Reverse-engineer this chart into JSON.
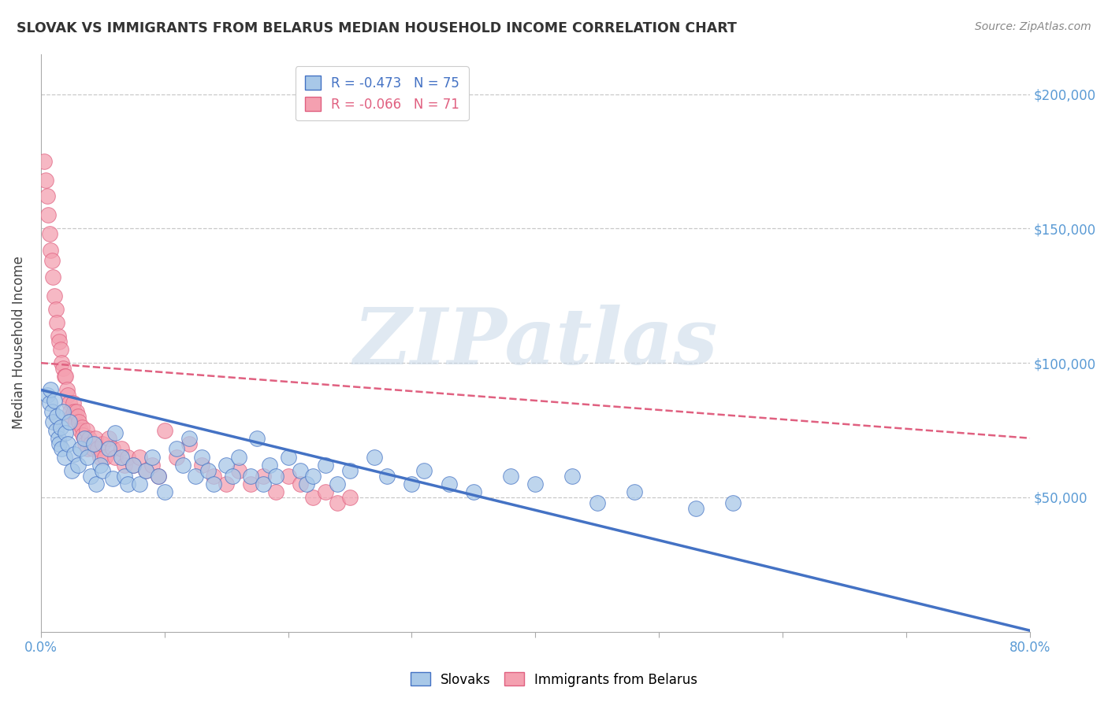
{
  "title": "SLOVAK VS IMMIGRANTS FROM BELARUS MEDIAN HOUSEHOLD INCOME CORRELATION CHART",
  "source": "Source: ZipAtlas.com",
  "ylabel": "Median Household Income",
  "xlim": [
    0.0,
    0.8
  ],
  "ylim": [
    0,
    215000
  ],
  "xticks": [
    0.0,
    0.1,
    0.2,
    0.3,
    0.4,
    0.5,
    0.6,
    0.7,
    0.8
  ],
  "xticklabels": [
    "0.0%",
    "",
    "",
    "",
    "",
    "",
    "",
    "",
    "80.0%"
  ],
  "ytick_values": [
    0,
    50000,
    100000,
    150000,
    200000
  ],
  "ytick_labels": [
    "",
    "$50,000",
    "$100,000",
    "$150,000",
    "$200,000"
  ],
  "slovak_R": -0.473,
  "slovak_N": 75,
  "belarus_R": -0.066,
  "belarus_N": 71,
  "slovak_color": "#a8c8e8",
  "belarus_color": "#f4a0b0",
  "slovak_line_color": "#4472c4",
  "belarus_line_color": "#e06080",
  "background_color": "#ffffff",
  "grid_color": "#c8c8c8",
  "watermark": "ZIPatlas",
  "slovak_x": [
    0.005,
    0.007,
    0.008,
    0.009,
    0.01,
    0.011,
    0.012,
    0.013,
    0.014,
    0.015,
    0.016,
    0.017,
    0.018,
    0.019,
    0.02,
    0.022,
    0.023,
    0.025,
    0.027,
    0.03,
    0.032,
    0.035,
    0.038,
    0.04,
    0.043,
    0.045,
    0.048,
    0.05,
    0.055,
    0.058,
    0.06,
    0.065,
    0.068,
    0.07,
    0.075,
    0.08,
    0.085,
    0.09,
    0.095,
    0.1,
    0.11,
    0.115,
    0.12,
    0.125,
    0.13,
    0.135,
    0.14,
    0.15,
    0.155,
    0.16,
    0.17,
    0.175,
    0.18,
    0.185,
    0.19,
    0.2,
    0.21,
    0.215,
    0.22,
    0.23,
    0.24,
    0.25,
    0.27,
    0.28,
    0.3,
    0.31,
    0.33,
    0.35,
    0.38,
    0.4,
    0.43,
    0.45,
    0.48,
    0.53,
    0.56
  ],
  "slovak_y": [
    88000,
    85000,
    90000,
    82000,
    78000,
    86000,
    75000,
    80000,
    72000,
    70000,
    76000,
    68000,
    82000,
    65000,
    74000,
    70000,
    78000,
    60000,
    66000,
    62000,
    68000,
    72000,
    65000,
    58000,
    70000,
    55000,
    62000,
    60000,
    68000,
    57000,
    74000,
    65000,
    58000,
    55000,
    62000,
    55000,
    60000,
    65000,
    58000,
    52000,
    68000,
    62000,
    72000,
    58000,
    65000,
    60000,
    55000,
    62000,
    58000,
    65000,
    58000,
    72000,
    55000,
    62000,
    58000,
    65000,
    60000,
    55000,
    58000,
    62000,
    55000,
    60000,
    65000,
    58000,
    55000,
    60000,
    55000,
    52000,
    58000,
    55000,
    58000,
    48000,
    52000,
    46000,
    48000
  ],
  "belarus_x": [
    0.003,
    0.004,
    0.005,
    0.006,
    0.007,
    0.008,
    0.009,
    0.01,
    0.011,
    0.012,
    0.013,
    0.014,
    0.015,
    0.016,
    0.017,
    0.018,
    0.019,
    0.02,
    0.021,
    0.022,
    0.023,
    0.024,
    0.025,
    0.026,
    0.027,
    0.028,
    0.029,
    0.03,
    0.031,
    0.032,
    0.033,
    0.034,
    0.035,
    0.036,
    0.037,
    0.038,
    0.039,
    0.04,
    0.042,
    0.044,
    0.046,
    0.048,
    0.05,
    0.052,
    0.055,
    0.058,
    0.06,
    0.065,
    0.068,
    0.07,
    0.075,
    0.08,
    0.085,
    0.09,
    0.095,
    0.1,
    0.11,
    0.12,
    0.13,
    0.14,
    0.15,
    0.16,
    0.17,
    0.18,
    0.19,
    0.2,
    0.21,
    0.22,
    0.23,
    0.24,
    0.25
  ],
  "belarus_y": [
    175000,
    168000,
    162000,
    155000,
    148000,
    142000,
    138000,
    132000,
    125000,
    120000,
    115000,
    110000,
    108000,
    105000,
    100000,
    98000,
    95000,
    95000,
    90000,
    88000,
    85000,
    82000,
    80000,
    85000,
    82000,
    78000,
    82000,
    80000,
    78000,
    75000,
    76000,
    73000,
    72000,
    70000,
    75000,
    68000,
    72000,
    70000,
    68000,
    72000,
    68000,
    65000,
    70000,
    65000,
    72000,
    68000,
    65000,
    68000,
    62000,
    65000,
    62000,
    65000,
    60000,
    62000,
    58000,
    75000,
    65000,
    70000,
    62000,
    58000,
    55000,
    60000,
    55000,
    58000,
    52000,
    58000,
    55000,
    50000,
    52000,
    48000,
    50000
  ]
}
